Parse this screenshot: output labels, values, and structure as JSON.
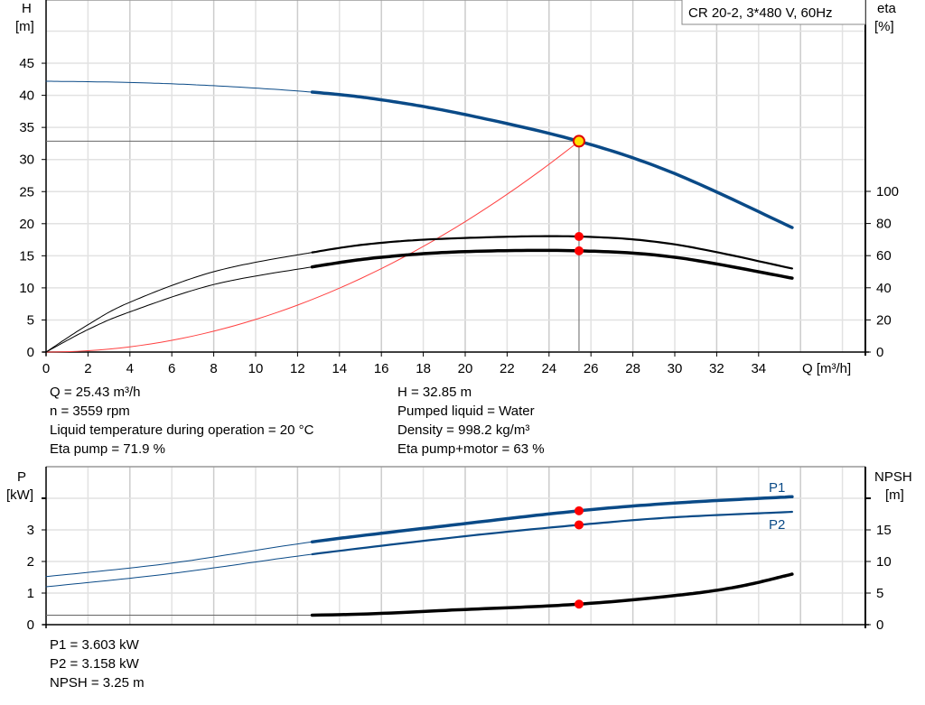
{
  "chart_data": [
    {
      "type": "line",
      "legend": "CR 20-2, 3*480 V, 60Hz",
      "xlabel": "Q [m³/h]",
      "ylabel": "H\n[m]",
      "ylabel_right": "eta\n[%]",
      "xlim": [
        0,
        39
      ],
      "ylim": [
        0,
        50
      ],
      "ylim_right": [
        0,
        100
      ],
      "x_ticks": [
        0,
        2,
        4,
        6,
        8,
        10,
        12,
        14,
        16,
        18,
        20,
        22,
        24,
        26,
        28,
        30,
        32,
        34
      ],
      "y_ticks": [
        0,
        5,
        10,
        15,
        20,
        25,
        30,
        35,
        40,
        45
      ],
      "y_ticks_right": [
        0,
        20,
        40,
        60,
        80,
        100
      ],
      "grid": true,
      "series": [
        {
          "id": "H",
          "color": "#0a4a87",
          "axis": "left",
          "x": [
            0,
            4,
            8,
            12.7,
            16,
            20,
            25.43,
            30,
            35.6
          ],
          "y": [
            42.2,
            42.0,
            41.5,
            40.5,
            39.3,
            37.0,
            32.85,
            27.8,
            19.4
          ]
        },
        {
          "id": "eta-pump",
          "color": "#000000",
          "axis": "right",
          "x": [
            0,
            2,
            4,
            8,
            12.7,
            16,
            20,
            25.43,
            30,
            35.6
          ],
          "y": [
            0,
            17,
            31,
            50,
            62,
            68,
            71,
            71.9,
            67,
            52
          ]
        },
        {
          "id": "eta-pump-motor",
          "color": "#000000",
          "axis": "right",
          "x": [
            0,
            2,
            4,
            8,
            12.7,
            16,
            20,
            25.43,
            30,
            35.6
          ],
          "y": [
            0,
            14,
            25,
            42,
            53,
            59,
            62.5,
            63,
            59,
            46
          ]
        },
        {
          "id": "system-curve",
          "color": "#ff4040",
          "axis": "left",
          "x": [
            0,
            25.43
          ],
          "y": [
            0,
            32.85
          ]
        }
      ],
      "operating_point": {
        "Q": 25.43,
        "H": 32.85,
        "eta_pump": 71.9,
        "eta_total": 63
      },
      "thick_from_Q": 12.7
    },
    {
      "type": "line",
      "ylabel": "P\n[kW]",
      "ylabel_right": "NPSH\n[m]",
      "ylim": [
        0,
        4.7
      ],
      "ylim_right": [
        0,
        23.5
      ],
      "y_ticks": [
        0,
        1,
        2,
        3
      ],
      "y_ticks_right": [
        0,
        5,
        10,
        15
      ],
      "series": [
        {
          "name": "P1",
          "color": "#0a4a87",
          "axis": "left",
          "x": [
            0,
            6,
            12.7,
            20,
            25.43,
            30,
            35.6
          ],
          "y": [
            1.52,
            1.95,
            2.62,
            3.2,
            3.603,
            3.85,
            4.05
          ]
        },
        {
          "name": "P2",
          "color": "#0a4a87",
          "axis": "left",
          "x": [
            0,
            6,
            12.7,
            20,
            25.43,
            30,
            35.6
          ],
          "y": [
            1.2,
            1.62,
            2.23,
            2.8,
            3.158,
            3.4,
            3.57
          ]
        },
        {
          "id": "NPSH",
          "color": "#000000",
          "axis": "right",
          "x": [
            0,
            12.7,
            20,
            25.43,
            30,
            33,
            35.6
          ],
          "y": [
            1.5,
            1.5,
            2.4,
            3.25,
            4.6,
            6.0,
            8.0
          ]
        }
      ]
    }
  ],
  "info_top": {
    "left": [
      "Q = 25.43 m³/h",
      "n = 3559 rpm",
      "Liquid temperature during operation = 20 °C",
      "Eta pump = 71.9 %"
    ],
    "right": [
      "H = 32.85 m",
      "Pumped liquid = Water",
      "Density = 998.2 kg/m³",
      "Eta pump+motor = 63 %"
    ]
  },
  "info_bottom": [
    "P1 = 3.603 kW",
    "P2 = 3.158 kW",
    "NPSH = 3.25 m"
  ]
}
